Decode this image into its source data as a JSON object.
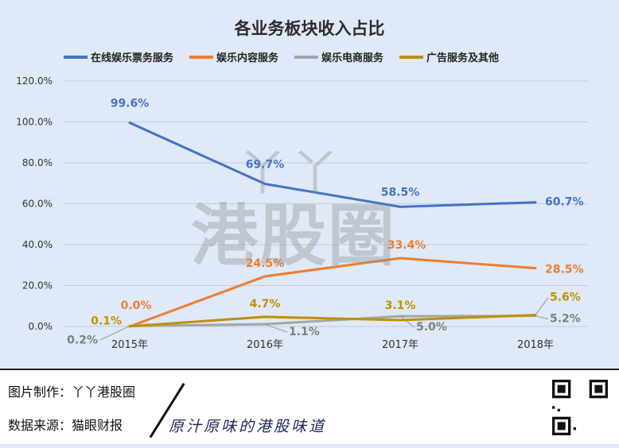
{
  "chart_data": {
    "type": "line",
    "title": "各业务板块收入占比",
    "categories": [
      "2015年",
      "2016年",
      "2017年",
      "2018年"
    ],
    "ylim": [
      0,
      120
    ],
    "yticks": [
      "0.0%",
      "20.0%",
      "40.0%",
      "60.0%",
      "80.0%",
      "100.0%",
      "120.0%"
    ],
    "ytick_values": [
      0,
      20,
      40,
      60,
      80,
      100,
      120
    ],
    "legend_position": "top",
    "grid": true,
    "series": [
      {
        "name": "在线娱乐票务服务",
        "color": "#4472c4",
        "values": [
          99.6,
          69.7,
          58.5,
          60.7
        ],
        "labels": [
          "99.6%",
          "69.7%",
          "58.5%",
          "60.7%"
        ]
      },
      {
        "name": "娱乐内容服务",
        "color": "#ed7d31",
        "values": [
          0.0,
          24.5,
          33.4,
          28.5
        ],
        "labels": [
          "0.0%",
          "24.5%",
          "33.4%",
          "28.5%"
        ]
      },
      {
        "name": "娱乐电商服务",
        "color": "#a5a5a5",
        "values": [
          0.2,
          1.1,
          5.0,
          5.2
        ],
        "labels": [
          "0.2%",
          "1.1%",
          "5.0%",
          "5.2%"
        ]
      },
      {
        "name": "广告服务及其他",
        "color": "#bf9000",
        "values": [
          0.1,
          4.7,
          3.1,
          5.6
        ],
        "labels": [
          "0.1%",
          "4.7%",
          "3.1%",
          "5.6%"
        ]
      }
    ]
  },
  "watermark": {
    "top": "丫丫",
    "main": "港股圈"
  },
  "footer": {
    "maker_label": "图片制作：丫丫港股圈",
    "source_label": "数据来源：猫眼财报",
    "slogan": "原汁原味的港股味道",
    "qr_icon": "qr-code-icon"
  }
}
